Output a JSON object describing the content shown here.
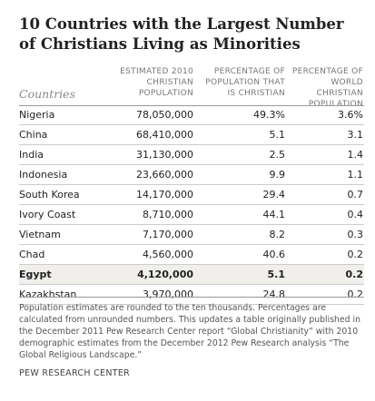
{
  "title": "10 Countries with the Largest Number of Christians Living as Minorities",
  "chart_data": {
    "type": "table",
    "title": "10 Countries with the Largest Number of Christians Living as Minorities",
    "columns": [
      "Countries",
      "ESTIMATED 2010 CHRISTIAN POPULATION",
      "PERCENTAGE OF POPULATION THAT IS CHRISTIAN",
      "PERCENTAGE OF WORLD CHRISTIAN POPULATION"
    ],
    "rows": [
      {
        "country": "Nigeria",
        "population": "78,050,000",
        "pct_population": "49.3%",
        "pct_world": "3.6%",
        "highlight": false
      },
      {
        "country": "China",
        "population": "68,410,000",
        "pct_population": "5.1",
        "pct_world": "3.1",
        "highlight": false
      },
      {
        "country": "India",
        "population": "31,130,000",
        "pct_population": "2.5",
        "pct_world": "1.4",
        "highlight": false
      },
      {
        "country": "Indonesia",
        "population": "23,660,000",
        "pct_population": "9.9",
        "pct_world": "1.1",
        "highlight": false
      },
      {
        "country": "South Korea",
        "population": "14,170,000",
        "pct_population": "29.4",
        "pct_world": "0.7",
        "highlight": false
      },
      {
        "country": "Ivory Coast",
        "population": "8,710,000",
        "pct_population": "44.1",
        "pct_world": "0.4",
        "highlight": false
      },
      {
        "country": "Vietnam",
        "population": "7,170,000",
        "pct_population": "8.2",
        "pct_world": "0.3",
        "highlight": false
      },
      {
        "country": "Chad",
        "population": "4,560,000",
        "pct_population": "40.6",
        "pct_world": "0.2",
        "highlight": false
      },
      {
        "country": "Egypt",
        "population": "4,120,000",
        "pct_population": "5.1",
        "pct_world": "0.2",
        "highlight": true
      },
      {
        "country": "Kazakhstan",
        "population": "3,970,000",
        "pct_population": "24.8",
        "pct_world": "0.2",
        "highlight": false
      }
    ]
  },
  "note": "Population estimates are rounded to the ten thousands. Percentages are calculated from unrounded numbers. This updates a table originally published in the December 2011 Pew Research Center report “Global Christianity” with 2010 demographic estimates from the December 2012 Pew Research analysis “The Global Religious Landscape.”",
  "source": "PEW RESEARCH CENTER",
  "colors": {
    "highlight_row": "#f0efec",
    "rule": "#999999",
    "row_divider": "#cccccc"
  }
}
